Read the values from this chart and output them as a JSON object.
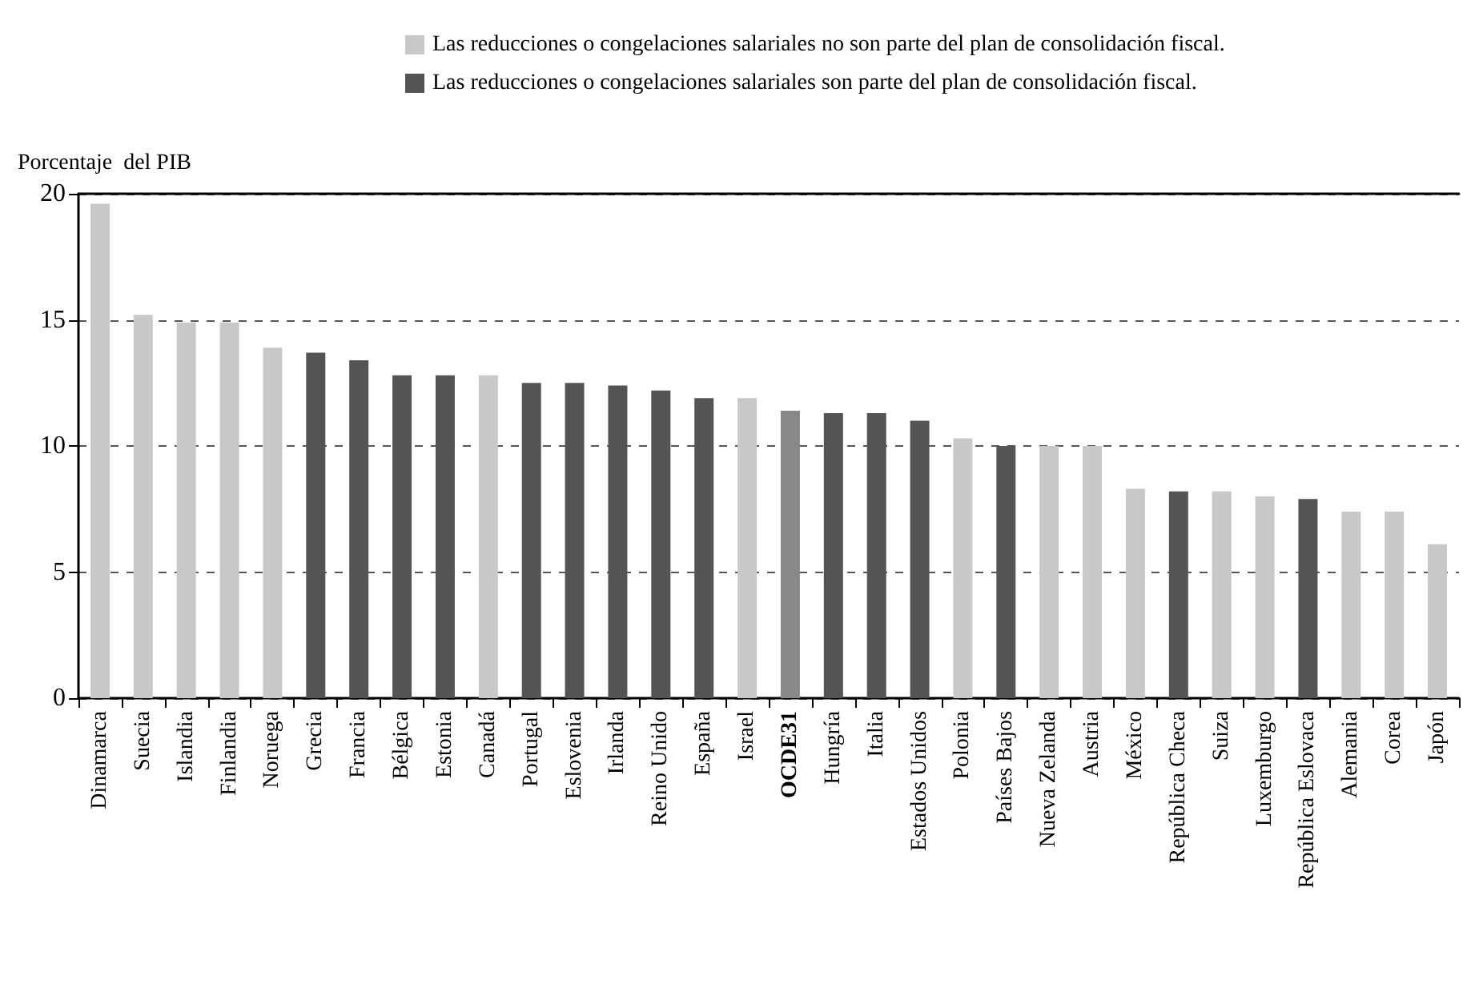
{
  "chart_data": {
    "type": "bar",
    "ylabel": "Porcentaje  del PIB",
    "categories": [
      "Dinamarca",
      "Suecia",
      "Islandia",
      "Finlandia",
      "Noruega",
      "Grecia",
      "Francia",
      "Bélgica",
      "Estonia",
      "Canadá",
      "Portugal",
      "Eslovenia",
      "Irlanda",
      "Reino Unido",
      "España",
      "Israel",
      "OCDE31",
      "Hungría",
      "Italia",
      "Estados Unidos",
      "Polonia",
      "Países Bajos",
      "Nueva Zelanda",
      "Austria",
      "México",
      "República Checa",
      "Suiza",
      "Luxemburgo",
      "República Eslovaca",
      "Alemania",
      "Corea",
      "Japón"
    ],
    "series": [
      {
        "name": "Las reducciones o congelaciones salariales no son parte del plan de consolidación fiscal.",
        "color": "#c8c8c8",
        "values": [
          19.6,
          15.2,
          14.9,
          14.9,
          13.9,
          null,
          null,
          null,
          null,
          12.8,
          null,
          null,
          null,
          null,
          null,
          11.9,
          null,
          null,
          null,
          null,
          10.3,
          null,
          10.0,
          10.0,
          8.3,
          null,
          8.2,
          8.0,
          null,
          7.4,
          7.4,
          6.1
        ]
      },
      {
        "name": "Las reducciones o congelaciones salariales son parte del plan de consolidación fiscal.",
        "color": "#545454",
        "values": [
          null,
          null,
          null,
          null,
          null,
          13.7,
          13.4,
          12.8,
          12.8,
          null,
          12.5,
          12.5,
          12.4,
          12.2,
          11.9,
          null,
          null,
          11.3,
          11.3,
          11.0,
          null,
          10.0,
          null,
          null,
          null,
          8.2,
          null,
          null,
          7.9,
          null,
          null,
          null
        ]
      },
      {
        "color": "#888888",
        "values": [
          null,
          null,
          null,
          null,
          null,
          null,
          null,
          null,
          null,
          null,
          null,
          null,
          null,
          null,
          null,
          null,
          11.4,
          null,
          null,
          null,
          null,
          null,
          null,
          null,
          null,
          null,
          null,
          null,
          null,
          null,
          null,
          null
        ]
      }
    ],
    "ylim": [
      0,
      20
    ],
    "yticks": [
      0,
      5,
      10,
      15,
      20
    ],
    "grid": "y",
    "legend": "top"
  }
}
